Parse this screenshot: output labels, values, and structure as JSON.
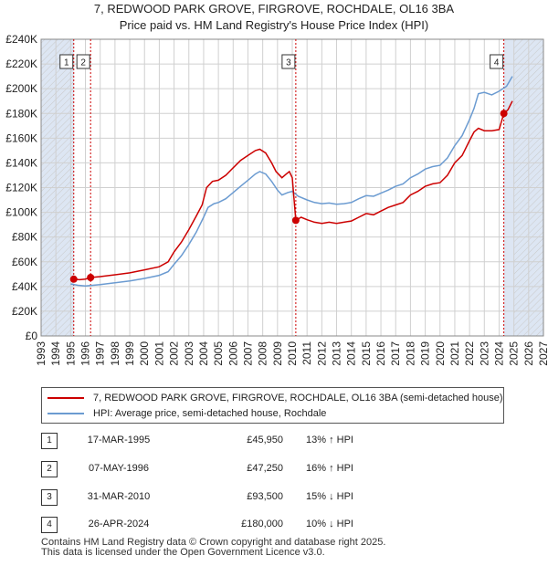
{
  "header": {
    "title_line1": "7, REDWOOD PARK GROVE, FIRGROVE, ROCHDALE, OL16 3BA",
    "title_line2": "Price paid vs. HM Land Registry's House Price Index (HPI)"
  },
  "colors": {
    "red": "#cc0000",
    "blue": "#6b9bd1",
    "shade": "#dde6f3",
    "grid": "#d0d0d0"
  },
  "chart_data": {
    "type": "line",
    "title": "Price paid vs. HM Land Registry's House Price Index (HPI)",
    "xlabel": "",
    "ylabel": "",
    "xlim": [
      1993,
      2027
    ],
    "ylim": [
      0,
      240000
    ],
    "x_ticks": [
      "1993",
      "1994",
      "1995",
      "1996",
      "1997",
      "1998",
      "1999",
      "2000",
      "2001",
      "2002",
      "2003",
      "2004",
      "2005",
      "2006",
      "2007",
      "2008",
      "2009",
      "2010",
      "2011",
      "2012",
      "2013",
      "2014",
      "2015",
      "2016",
      "2017",
      "2018",
      "2019",
      "2020",
      "2021",
      "2022",
      "2023",
      "2024",
      "2025",
      "2026",
      "2027"
    ],
    "y_ticks": [
      {
        "value": 0,
        "label": "£0"
      },
      {
        "value": 20000,
        "label": "£20K"
      },
      {
        "value": 40000,
        "label": "£40K"
      },
      {
        "value": 60000,
        "label": "£60K"
      },
      {
        "value": 80000,
        "label": "£80K"
      },
      {
        "value": 100000,
        "label": "£100K"
      },
      {
        "value": 120000,
        "label": "£120K"
      },
      {
        "value": 140000,
        "label": "£140K"
      },
      {
        "value": 160000,
        "label": "£160K"
      },
      {
        "value": 180000,
        "label": "£180K"
      },
      {
        "value": 200000,
        "label": "£200K"
      },
      {
        "value": 220000,
        "label": "£220K"
      },
      {
        "value": 240000,
        "label": "£240K"
      }
    ],
    "series": [
      {
        "name": "7, REDWOOD PARK GROVE, FIRGROVE, ROCHDALE, OL16 3BA (semi-detached house)",
        "color": "#cc0000",
        "points": [
          [
            1995.21,
            45950
          ],
          [
            1995.6,
            45500
          ],
          [
            1996.0,
            46000
          ],
          [
            1996.35,
            47250
          ],
          [
            1997.0,
            48000
          ],
          [
            1998.0,
            49500
          ],
          [
            1999.0,
            51000
          ],
          [
            2000.0,
            53500
          ],
          [
            2001.0,
            56000
          ],
          [
            2001.6,
            60000
          ],
          [
            2002.0,
            68000
          ],
          [
            2002.5,
            76000
          ],
          [
            2003.0,
            86000
          ],
          [
            2003.5,
            97000
          ],
          [
            2003.9,
            106000
          ],
          [
            2004.2,
            120000
          ],
          [
            2004.6,
            125000
          ],
          [
            2005.0,
            126000
          ],
          [
            2005.5,
            130000
          ],
          [
            2006.0,
            136000
          ],
          [
            2006.5,
            142000
          ],
          [
            2007.0,
            146000
          ],
          [
            2007.5,
            150000
          ],
          [
            2007.8,
            151000
          ],
          [
            2008.2,
            148000
          ],
          [
            2008.6,
            140000
          ],
          [
            2008.9,
            133000
          ],
          [
            2009.3,
            128000
          ],
          [
            2009.6,
            131000
          ],
          [
            2009.8,
            133000
          ],
          [
            2010.0,
            128000
          ],
          [
            2010.24,
            93500
          ],
          [
            2010.6,
            96000
          ],
          [
            2011.0,
            94000
          ],
          [
            2011.5,
            92000
          ],
          [
            2012.0,
            91000
          ],
          [
            2012.5,
            92000
          ],
          [
            2013.0,
            91000
          ],
          [
            2013.5,
            92000
          ],
          [
            2014.0,
            93000
          ],
          [
            2014.5,
            96000
          ],
          [
            2015.0,
            99000
          ],
          [
            2015.5,
            98000
          ],
          [
            2016.0,
            101000
          ],
          [
            2016.5,
            104000
          ],
          [
            2017.0,
            106000
          ],
          [
            2017.5,
            108000
          ],
          [
            2018.0,
            114000
          ],
          [
            2018.5,
            117000
          ],
          [
            2019.0,
            121000
          ],
          [
            2019.5,
            123000
          ],
          [
            2020.0,
            124000
          ],
          [
            2020.5,
            130000
          ],
          [
            2021.0,
            140000
          ],
          [
            2021.5,
            146000
          ],
          [
            2022.0,
            158000
          ],
          [
            2022.3,
            165000
          ],
          [
            2022.6,
            168000
          ],
          [
            2023.0,
            166000
          ],
          [
            2023.5,
            166000
          ],
          [
            2024.0,
            167000
          ],
          [
            2024.32,
            180000
          ],
          [
            2024.6,
            183000
          ],
          [
            2024.9,
            190000
          ]
        ]
      },
      {
        "name": "HPI: Average price, semi-detached house, Rochdale",
        "color": "#6b9bd1",
        "points": [
          [
            1995.0,
            42000
          ],
          [
            1995.5,
            41000
          ],
          [
            1996.0,
            40500
          ],
          [
            1997.0,
            41500
          ],
          [
            1998.0,
            43000
          ],
          [
            1999.0,
            44500
          ],
          [
            2000.0,
            46500
          ],
          [
            2001.0,
            49000
          ],
          [
            2001.6,
            52000
          ],
          [
            2002.0,
            58000
          ],
          [
            2002.5,
            65000
          ],
          [
            2003.0,
            74000
          ],
          [
            2003.5,
            84000
          ],
          [
            2004.0,
            96000
          ],
          [
            2004.3,
            104000
          ],
          [
            2004.7,
            107000
          ],
          [
            2005.0,
            108000
          ],
          [
            2005.5,
            111000
          ],
          [
            2006.0,
            116000
          ],
          [
            2006.5,
            121000
          ],
          [
            2007.0,
            126000
          ],
          [
            2007.5,
            131000
          ],
          [
            2007.8,
            133000
          ],
          [
            2008.2,
            131000
          ],
          [
            2008.6,
            125000
          ],
          [
            2009.0,
            118000
          ],
          [
            2009.3,
            114000
          ],
          [
            2009.7,
            116000
          ],
          [
            2010.0,
            117000
          ],
          [
            2010.4,
            113000
          ],
          [
            2011.0,
            110000
          ],
          [
            2011.5,
            108000
          ],
          [
            2012.0,
            107000
          ],
          [
            2012.5,
            107500
          ],
          [
            2013.0,
            106500
          ],
          [
            2013.5,
            107000
          ],
          [
            2014.0,
            108000
          ],
          [
            2014.5,
            111000
          ],
          [
            2015.0,
            113500
          ],
          [
            2015.5,
            113000
          ],
          [
            2016.0,
            115500
          ],
          [
            2016.5,
            118000
          ],
          [
            2017.0,
            121000
          ],
          [
            2017.5,
            123000
          ],
          [
            2018.0,
            128000
          ],
          [
            2018.5,
            131000
          ],
          [
            2019.0,
            135000
          ],
          [
            2019.5,
            137000
          ],
          [
            2020.0,
            138000
          ],
          [
            2020.5,
            144000
          ],
          [
            2021.0,
            154000
          ],
          [
            2021.5,
            162000
          ],
          [
            2022.0,
            175000
          ],
          [
            2022.3,
            184000
          ],
          [
            2022.6,
            196000
          ],
          [
            2023.0,
            197000
          ],
          [
            2023.5,
            195000
          ],
          [
            2024.0,
            198000
          ],
          [
            2024.5,
            202000
          ],
          [
            2024.9,
            210000
          ]
        ]
      }
    ],
    "sales": [
      {
        "num": "1",
        "year": 1995.21,
        "price": 45950
      },
      {
        "num": "2",
        "year": 1996.35,
        "price": 47250
      },
      {
        "num": "3",
        "year": 2010.24,
        "price": 93500
      },
      {
        "num": "4",
        "year": 2024.32,
        "price": 180000
      }
    ],
    "shaded_ranges": [
      [
        1993,
        1995.21
      ],
      [
        2024.32,
        2027
      ]
    ]
  },
  "legend": {
    "red_label": "7, REDWOOD PARK GROVE, FIRGROVE, ROCHDALE, OL16 3BA (semi-detached house)",
    "blue_label": "HPI: Average price, semi-detached house, Rochdale"
  },
  "table": [
    {
      "num": "1",
      "date": "17-MAR-1995",
      "price": "£45,950",
      "pct": "13% ↑ HPI"
    },
    {
      "num": "2",
      "date": "07-MAY-1996",
      "price": "£47,250",
      "pct": "16% ↑ HPI"
    },
    {
      "num": "3",
      "date": "31-MAR-2010",
      "price": "£93,500",
      "pct": "15% ↓ HPI"
    },
    {
      "num": "4",
      "date": "26-APR-2024",
      "price": "£180,000",
      "pct": "10% ↓ HPI"
    }
  ],
  "footer": {
    "line1": "Contains HM Land Registry data © Crown copyright and database right 2025.",
    "line2": "This data is licensed under the Open Government Licence v3.0."
  }
}
